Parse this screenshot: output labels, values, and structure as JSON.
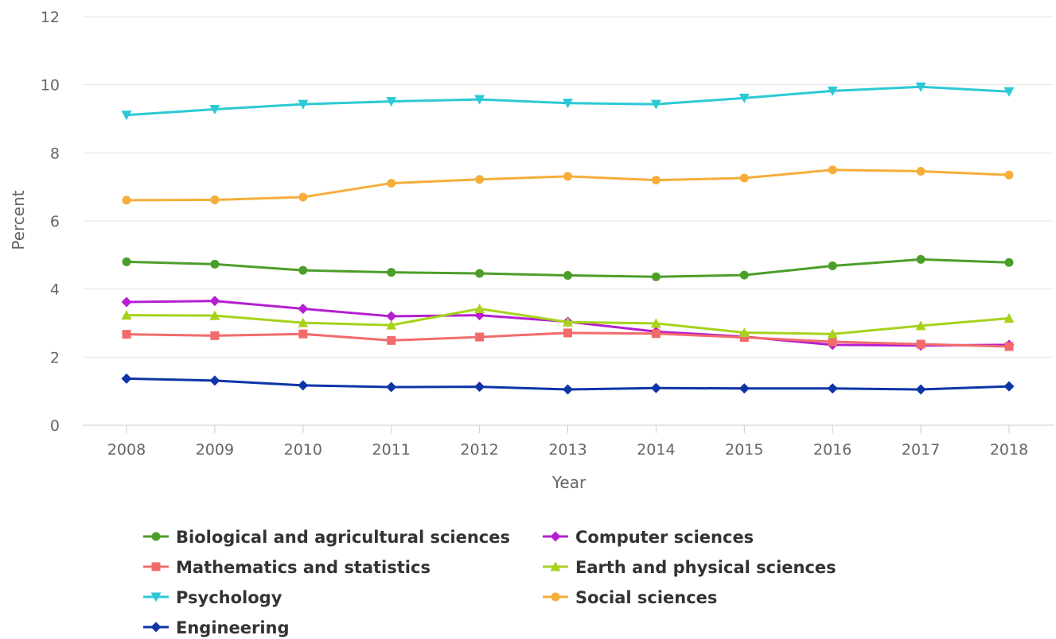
{
  "chart_data": {
    "type": "line",
    "xlabel": "Year",
    "ylabel": "Percent",
    "x": [
      "2008",
      "2009",
      "2010",
      "2011",
      "2012",
      "2013",
      "2014",
      "2015",
      "2016",
      "2017",
      "2018"
    ],
    "ylim": [
      0,
      12
    ],
    "yticks": [
      "0",
      "2",
      "4",
      "6",
      "8",
      "10",
      "12"
    ],
    "grid": true,
    "legend_position": "bottom",
    "series": [
      {
        "name": "Biological and agricultural sciences",
        "color": "#4c9e2a",
        "marker": "circle",
        "values": [
          4.8,
          4.73,
          4.55,
          4.49,
          4.46,
          4.4,
          4.36,
          4.41,
          4.68,
          4.87,
          4.78
        ]
      },
      {
        "name": "Computer sciences",
        "color": "#b51fd1",
        "marker": "diamond",
        "values": [
          3.62,
          3.65,
          3.42,
          3.2,
          3.23,
          3.04,
          2.75,
          2.6,
          2.36,
          2.34,
          2.36
        ]
      },
      {
        "name": "Mathematics and statistics",
        "color": "#f26b6b",
        "marker": "square",
        "values": [
          2.67,
          2.63,
          2.68,
          2.49,
          2.59,
          2.71,
          2.69,
          2.58,
          2.45,
          2.38,
          2.31
        ]
      },
      {
        "name": "Earth and physical sciences",
        "color": "#a6d21c",
        "marker": "triangle-up",
        "values": [
          3.23,
          3.22,
          3.01,
          2.94,
          3.42,
          3.03,
          2.99,
          2.72,
          2.68,
          2.92,
          3.14
        ]
      },
      {
        "name": "Psychology",
        "color": "#2cc9d4",
        "marker": "triangle-down",
        "values": [
          9.11,
          9.28,
          9.43,
          9.51,
          9.57,
          9.46,
          9.43,
          9.61,
          9.82,
          9.94,
          9.8
        ]
      },
      {
        "name": "Social sciences",
        "color": "#f5ae3a",
        "marker": "circle",
        "values": [
          6.61,
          6.62,
          6.7,
          7.11,
          7.22,
          7.31,
          7.2,
          7.26,
          7.5,
          7.46,
          7.35
        ]
      },
      {
        "name": "Engineering",
        "color": "#0e35a7",
        "marker": "diamond",
        "values": [
          1.37,
          1.31,
          1.17,
          1.12,
          1.13,
          1.05,
          1.09,
          1.08,
          1.08,
          1.05,
          1.14
        ]
      }
    ]
  }
}
